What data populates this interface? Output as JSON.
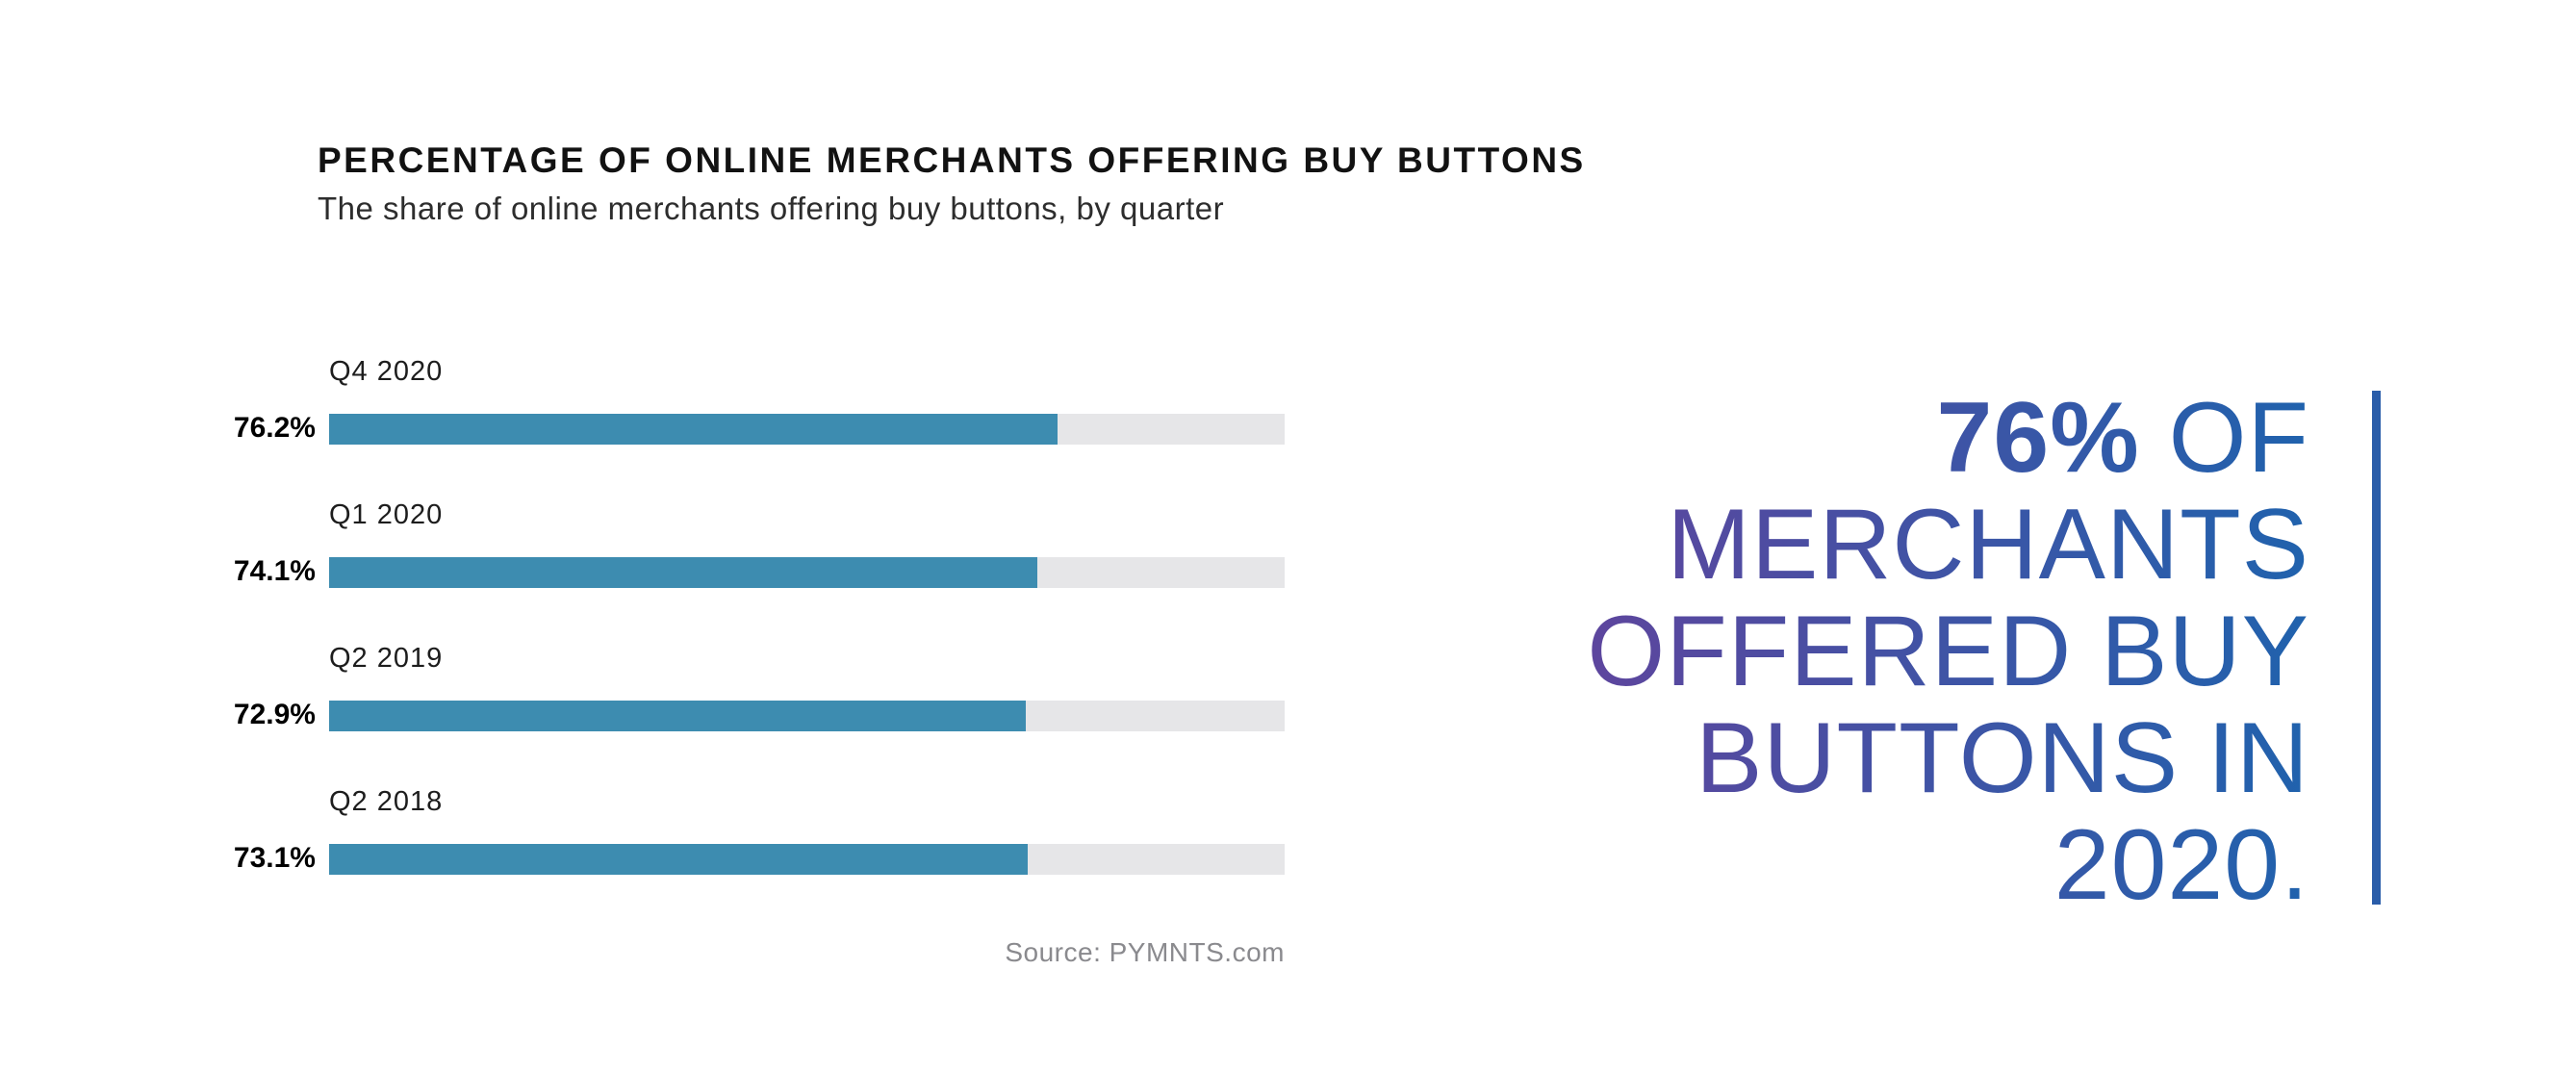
{
  "chart": {
    "title": "PERCENTAGE OF ONLINE MERCHANTS OFFERING BUY BUTTONS",
    "subtitle": "The share of online merchants offering buy buttons, by quarter",
    "source": "Source: PYMNTS.com"
  },
  "chart_data": {
    "type": "bar",
    "orientation": "horizontal",
    "title": "PERCENTAGE OF ONLINE MERCHANTS OFFERING BUY BUTTONS",
    "subtitle": "The share of online merchants offering buy buttons, by quarter",
    "source": "Source: PYMNTS.com",
    "categories": [
      "Q4 2020",
      "Q1 2020",
      "Q2 2019",
      "Q2 2018"
    ],
    "values": [
      76.2,
      74.1,
      72.9,
      73.1
    ],
    "value_labels": [
      "76.2%",
      "74.1%",
      "72.9%",
      "73.1%"
    ],
    "xlim": [
      0,
      100
    ],
    "grid": false,
    "legend": "none",
    "bar_color": "#3d8cb0",
    "track_color": "#e6e6e8"
  },
  "callout": {
    "lines": [
      {
        "bold": "76%",
        "text": " OF"
      },
      {
        "bold": "",
        "text": "MERCHANTS"
      },
      {
        "bold": "",
        "text": "OFFERED BUY"
      },
      {
        "bold": "",
        "text": "BUTTONS IN"
      },
      {
        "bold": "",
        "text": "2020."
      }
    ],
    "gradient_start": "#6b3f9a",
    "gradient_end": "#2062ad",
    "rule_color": "#2a5da9"
  },
  "layout_values": {
    "row_tops": [
      370,
      519,
      668,
      817
    ]
  }
}
